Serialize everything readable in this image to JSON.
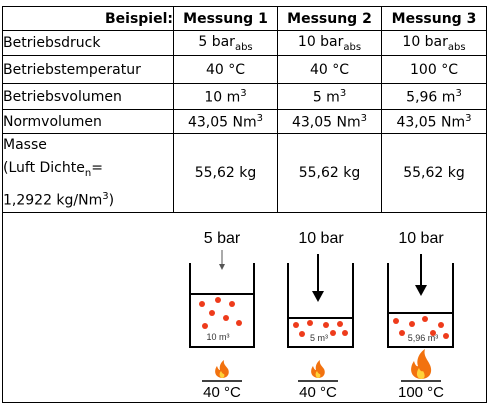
{
  "table": {
    "headers": [
      "Beispiel:",
      "Messung 1",
      "Messung 2",
      "Messung 3"
    ],
    "rows": [
      {
        "label": "Betriebsdruck",
        "cells": [
          {
            "main": "5 bar",
            "sub": "abs"
          },
          {
            "main": "10 bar",
            "sub": "abs"
          },
          {
            "main": "10 bar",
            "sub": "abs"
          }
        ]
      },
      {
        "label": "Betriebstemperatur",
        "cells": [
          {
            "main": "40 °C"
          },
          {
            "main": "40 °C"
          },
          {
            "main": "100 °C"
          }
        ]
      },
      {
        "label": "Betriebsvolumen",
        "cells": [
          {
            "main": "10 m",
            "sup": "3"
          },
          {
            "main": "5 m",
            "sup": "3"
          },
          {
            "main": "5,96 m",
            "sup": "3"
          }
        ]
      },
      {
        "label": "Normvolumen",
        "cells": [
          {
            "main": "43,05 Nm",
            "sup": "3"
          },
          {
            "main": "43,05 Nm",
            "sup": "3"
          },
          {
            "main": "43,05 Nm",
            "sup": "3"
          }
        ]
      }
    ],
    "mass": {
      "line1": "Masse",
      "line2_main": "(Luft Dichte",
      "line2_sub": "n",
      "line2_end": "=",
      "line3_main": "1,2922 kg/Nm",
      "line3_sup": "3",
      "line3_end": ")",
      "cells": [
        "55,62 kg",
        "55,62 kg",
        "55,62 kg"
      ]
    }
  },
  "illustration": {
    "colors": {
      "fire_outer": "#f2720f",
      "fire_inner": "#ffd23a",
      "dot": "#ee3b1b"
    },
    "cylinders": [
      {
        "pressure": "5 bar",
        "volume": "10 m³",
        "temperature": "40 °C",
        "flame": "small"
      },
      {
        "pressure": "10 bar",
        "volume": "5 m³",
        "temperature": "40 °C",
        "flame": "small"
      },
      {
        "pressure": "10 bar",
        "volume": "5,96 m³",
        "temperature": "100 °C",
        "flame": "large"
      }
    ]
  }
}
